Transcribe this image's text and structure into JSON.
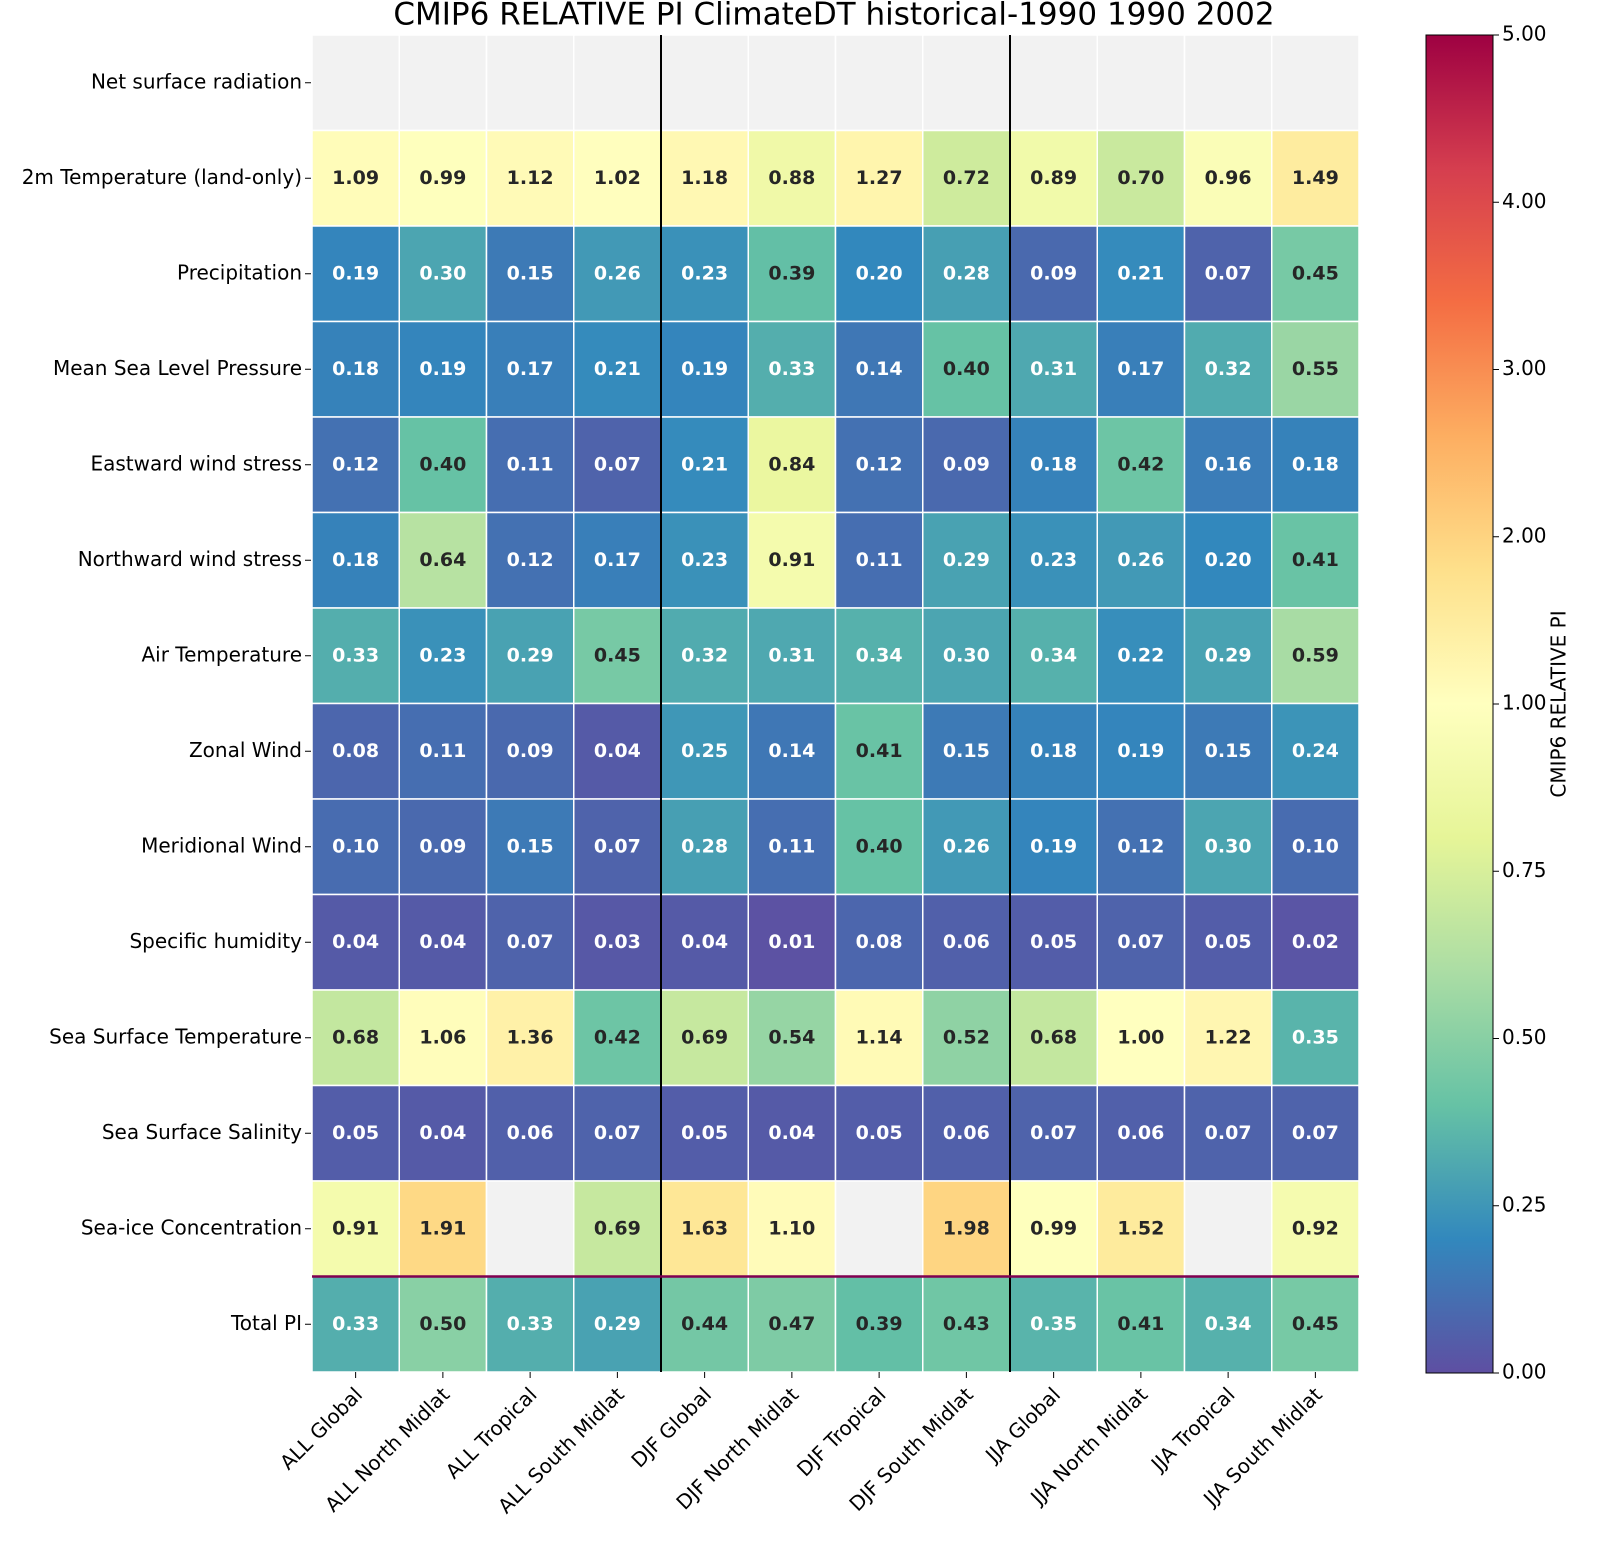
{
  "chart_data": {
    "type": "heatmap",
    "title": "CMIP6 RELATIVE PI ClimateDT historical-1990 1990 2002",
    "rows": [
      "Net surface radiation",
      "2m Temperature (land-only)",
      "Precipitation",
      "Mean Sea Level Pressure",
      "Eastward wind stress",
      "Northward wind stress",
      "Air Temperature",
      "Zonal Wind",
      "Meridional Wind",
      "Specific humidity",
      "Sea Surface Temperature",
      "Sea Surface Salinity",
      "Sea-ice Concentration",
      "Total PI"
    ],
    "columns": [
      "ALL Global",
      "ALL North Midlat",
      "ALL Tropical",
      "ALL South Midlat",
      "DJF Global",
      "DJF North Midlat",
      "DJF Tropical",
      "DJF South Midlat",
      "JJA Global",
      "JJA North Midlat",
      "JJA Tropical",
      "JJA South Midlat"
    ],
    "values": [
      [
        null,
        null,
        null,
        null,
        null,
        null,
        null,
        null,
        null,
        null,
        null,
        null
      ],
      [
        1.09,
        0.99,
        1.12,
        1.02,
        1.18,
        0.88,
        1.27,
        0.72,
        0.89,
        0.7,
        0.96,
        1.49
      ],
      [
        0.19,
        0.3,
        0.15,
        0.26,
        0.23,
        0.39,
        0.2,
        0.28,
        0.09,
        0.21,
        0.07,
        0.45
      ],
      [
        0.18,
        0.19,
        0.17,
        0.21,
        0.19,
        0.33,
        0.14,
        0.4,
        0.31,
        0.17,
        0.32,
        0.55
      ],
      [
        0.12,
        0.4,
        0.11,
        0.07,
        0.21,
        0.84,
        0.12,
        0.09,
        0.18,
        0.42,
        0.16,
        0.18
      ],
      [
        0.18,
        0.64,
        0.12,
        0.17,
        0.23,
        0.91,
        0.11,
        0.29,
        0.23,
        0.26,
        0.2,
        0.41
      ],
      [
        0.33,
        0.23,
        0.29,
        0.45,
        0.32,
        0.31,
        0.34,
        0.3,
        0.34,
        0.22,
        0.29,
        0.59
      ],
      [
        0.08,
        0.11,
        0.09,
        0.04,
        0.25,
        0.14,
        0.41,
        0.15,
        0.18,
        0.19,
        0.15,
        0.24
      ],
      [
        0.1,
        0.09,
        0.15,
        0.07,
        0.28,
        0.11,
        0.4,
        0.26,
        0.19,
        0.12,
        0.3,
        0.1
      ],
      [
        0.04,
        0.04,
        0.07,
        0.03,
        0.04,
        0.01,
        0.08,
        0.06,
        0.05,
        0.07,
        0.05,
        0.02
      ],
      [
        0.68,
        1.06,
        1.36,
        0.42,
        0.69,
        0.54,
        1.14,
        0.52,
        0.68,
        1.0,
        1.22,
        0.35
      ],
      [
        0.05,
        0.04,
        0.06,
        0.07,
        0.05,
        0.04,
        0.05,
        0.06,
        0.07,
        0.06,
        0.07,
        0.07
      ],
      [
        0.91,
        1.91,
        null,
        0.69,
        1.63,
        1.1,
        null,
        1.98,
        0.99,
        1.52,
        null,
        0.92
      ],
      [
        0.33,
        0.5,
        0.33,
        0.29,
        0.44,
        0.47,
        0.39,
        0.43,
        0.35,
        0.41,
        0.34,
        0.45
      ]
    ],
    "value_labels": [
      [
        null,
        null,
        null,
        null,
        null,
        null,
        null,
        null,
        null,
        null,
        null,
        null
      ],
      [
        "1.09",
        "0.99",
        "1.12",
        "1.02",
        "1.18",
        "0.88",
        "1.27",
        "0.72",
        "0.89",
        "0.70",
        "0.96",
        "1.49"
      ],
      [
        "0.19",
        "0.30",
        "0.15",
        "0.26",
        "0.23",
        "0.39",
        "0.20",
        "0.28",
        "0.09",
        "0.21",
        "0.07",
        "0.45"
      ],
      [
        "0.18",
        "0.19",
        "0.17",
        "0.21",
        "0.19",
        "0.33",
        "0.14",
        "0.40",
        "0.31",
        "0.17",
        "0.32",
        "0.55"
      ],
      [
        "0.12",
        "0.40",
        "0.11",
        "0.07",
        "0.21",
        "0.84",
        "0.12",
        "0.09",
        "0.18",
        "0.42",
        "0.16",
        "0.18"
      ],
      [
        "0.18",
        "0.64",
        "0.12",
        "0.17",
        "0.23",
        "0.91",
        "0.11",
        "0.29",
        "0.23",
        "0.26",
        "0.20",
        "0.41"
      ],
      [
        "0.33",
        "0.23",
        "0.29",
        "0.45",
        "0.32",
        "0.31",
        "0.34",
        "0.30",
        "0.34",
        "0.22",
        "0.29",
        "0.59"
      ],
      [
        "0.08",
        "0.11",
        "0.09",
        "0.04",
        "0.25",
        "0.14",
        "0.41",
        "0.15",
        "0.18",
        "0.19",
        "0.15",
        "0.24"
      ],
      [
        "0.10",
        "0.09",
        "0.15",
        "0.07",
        "0.28",
        "0.11",
        "0.40",
        "0.26",
        "0.19",
        "0.12",
        "0.30",
        "0.10"
      ],
      [
        "0.04",
        "0.04",
        "0.07",
        "0.03",
        "0.04",
        "0.01",
        "0.08",
        "0.06",
        "0.05",
        "0.07",
        "0.05",
        "0.02"
      ],
      [
        "0.68",
        "1.06",
        "1.36",
        "0.42",
        "0.69",
        "0.54",
        "1.14",
        "0.52",
        "0.68",
        "1.00",
        "1.22",
        "0.35"
      ],
      [
        "0.05",
        "0.04",
        "0.06",
        "0.07",
        "0.05",
        "0.04",
        "0.05",
        "0.06",
        "0.07",
        "0.06",
        "0.07",
        "0.07"
      ],
      [
        "0.91",
        "1.91",
        null,
        "0.69",
        "1.63",
        "1.10",
        null,
        "1.98",
        "0.99",
        "1.52",
        null,
        "0.92"
      ],
      [
        "0.33",
        "0.50",
        "0.33",
        "0.29",
        "0.44",
        "0.47",
        "0.39",
        "0.43",
        "0.35",
        "0.41",
        "0.34",
        "0.45"
      ]
    ],
    "colorbar_label": "CMIP6 RELATIVE PI",
    "clim": [
      0,
      5
    ],
    "cticks": [
      {
        "value": 0,
        "label": "0.00"
      },
      {
        "value": 0.25,
        "label": "0.25"
      },
      {
        "value": 0.5,
        "label": "0.50"
      },
      {
        "value": 0.75,
        "label": "0.75"
      },
      {
        "value": 1,
        "label": "1.00"
      },
      {
        "value": 2,
        "label": "2.00"
      },
      {
        "value": 3,
        "label": "3.00"
      },
      {
        "value": 4,
        "label": "4.00"
      },
      {
        "value": 5,
        "label": "5.00"
      }
    ],
    "colormap": [
      "#5e4fa2",
      "#3288bd",
      "#66c2a5",
      "#abdda4",
      "#e6f598",
      "#ffffbf",
      "#fee08b",
      "#fdae61",
      "#f46d43",
      "#d53e4f",
      "#9e0142"
    ],
    "nan_color": "#f2f2f2"
  }
}
